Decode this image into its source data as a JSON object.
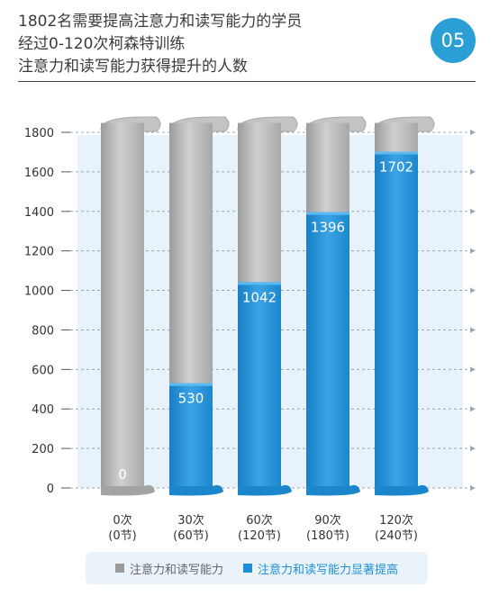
{
  "header": {
    "title_lines": [
      "1802名需要提高注意力和读写能力的学员",
      "经过0-120次柯森特训练",
      "注意力和读写能力获得提升的人数"
    ],
    "badge": "05"
  },
  "legend": {
    "items": [
      {
        "label": "注意力和读写能力",
        "color": "#9a9a9a"
      },
      {
        "label": "注意力和读写能力显著提高",
        "color": "#1e8fd4"
      }
    ]
  },
  "chart_data": {
    "type": "bar",
    "categories": [
      [
        "0次",
        "(0节)"
      ],
      [
        "30次",
        "(60节)"
      ],
      [
        "60次",
        "(120节)"
      ],
      [
        "90次",
        "(180节)"
      ],
      [
        "120次",
        "(240节)"
      ]
    ],
    "series": [
      {
        "name": "注意力和读写能力",
        "values": [
          1802,
          1802,
          1802,
          1802,
          1802
        ],
        "color": "#b5b5b5"
      },
      {
        "name": "注意力和读写能力显著提高",
        "values": [
          0,
          530,
          1042,
          1396,
          1702
        ],
        "color": "#1e8fd4"
      }
    ],
    "data_labels": [
      "0",
      "530",
      "1042",
      "1396",
      "1702"
    ],
    "y_ticks": [
      0,
      200,
      400,
      600,
      800,
      1000,
      1200,
      1400,
      1600,
      1800
    ],
    "ylim": [
      0,
      1800
    ],
    "grid": true
  }
}
